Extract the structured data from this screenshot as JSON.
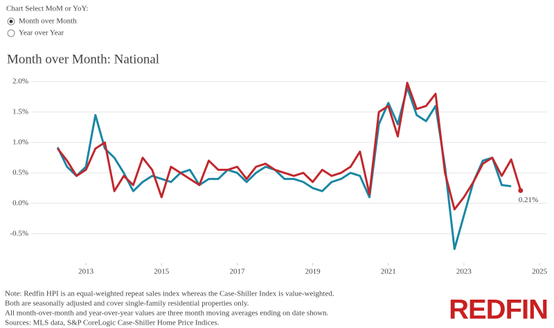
{
  "control": {
    "label": "Chart Select MoM or YoY:",
    "options": [
      "Month over Month",
      "Year over Year"
    ],
    "selected": 0
  },
  "chart_data": {
    "type": "line",
    "title": "Month over Month:  National",
    "x": [
      2012.25,
      2012.5,
      2012.75,
      2013.0,
      2013.25,
      2013.5,
      2013.75,
      2014.0,
      2014.25,
      2014.5,
      2014.75,
      2015.0,
      2015.25,
      2015.5,
      2015.75,
      2016.0,
      2016.25,
      2016.5,
      2016.75,
      2017.0,
      2017.25,
      2017.5,
      2017.75,
      2018.0,
      2018.25,
      2018.5,
      2018.75,
      2019.0,
      2019.25,
      2019.5,
      2019.75,
      2020.0,
      2020.25,
      2020.5,
      2020.75,
      2021.0,
      2021.25,
      2021.5,
      2021.75,
      2022.0,
      2022.25,
      2022.5,
      2022.75,
      2023.0,
      2023.25,
      2023.5,
      2023.75,
      2024.0,
      2024.25,
      2024.5
    ],
    "series": [
      {
        "color": "#c1272d",
        "values": [
          0.9,
          0.7,
          0.45,
          0.55,
          0.9,
          1.0,
          0.2,
          0.45,
          0.3,
          0.75,
          0.55,
          0.1,
          0.6,
          0.5,
          0.4,
          0.3,
          0.7,
          0.55,
          0.55,
          0.6,
          0.4,
          0.6,
          0.65,
          0.55,
          0.5,
          0.45,
          0.5,
          0.35,
          0.55,
          0.45,
          0.5,
          0.6,
          0.85,
          0.15,
          1.5,
          1.6,
          1.1,
          1.98,
          1.55,
          1.6,
          1.8,
          0.5,
          -0.1,
          0.1,
          0.35,
          0.65,
          0.75,
          0.45,
          0.72,
          0.21
        ],
        "value_labels": [
          null,
          null,
          null,
          null,
          null,
          null,
          null,
          null,
          null,
          null,
          null,
          null,
          null,
          null,
          null,
          null,
          null,
          null,
          null,
          null,
          null,
          null,
          null,
          null,
          null,
          null,
          null,
          null,
          null,
          null,
          null,
          null,
          null,
          null,
          null,
          null,
          null,
          null,
          null,
          null,
          null,
          null,
          null,
          null,
          null,
          null,
          null,
          null,
          null,
          "0.21%"
        ]
      },
      {
        "color": "#1a87a4",
        "values": [
          0.92,
          0.6,
          0.45,
          0.6,
          1.45,
          0.9,
          0.75,
          0.5,
          0.2,
          0.35,
          0.45,
          0.4,
          0.35,
          0.5,
          0.55,
          0.3,
          0.4,
          0.4,
          0.55,
          0.5,
          0.35,
          0.5,
          0.6,
          0.55,
          0.4,
          0.4,
          0.35,
          0.25,
          0.2,
          0.35,
          0.4,
          0.5,
          0.45,
          0.1,
          1.3,
          1.65,
          1.3,
          1.9,
          1.45,
          1.35,
          1.6,
          0.6,
          -0.75,
          -0.2,
          0.35,
          0.7,
          0.75,
          0.3,
          0.28,
          null
        ]
      }
    ],
    "xlim": [
      2011.55,
      2025.2
    ],
    "xticks": [
      2013,
      2015,
      2017,
      2019,
      2021,
      2023,
      2025
    ],
    "ylim": [
      -0.98,
      2.09
    ],
    "yticks": [
      {
        "value": -0.5,
        "label": "-0.5%"
      },
      {
        "value": 0,
        "label": "0.0%"
      },
      {
        "value": 0.5,
        "label": "0.5%"
      },
      {
        "value": 1.0,
        "label": "1.0%"
      },
      {
        "value": 1.5,
        "label": "1.5%"
      },
      {
        "value": 2.0,
        "label": "2.0%"
      }
    ],
    "grid": true
  },
  "notes": [
    "Note: Redfin HPI is an equal-weighted repeat sales index whereas the Case-Shiller Index is value-weighted.",
    "Both are seasonally adjusted and cover single-family residential properties only.",
    "All month-over-month and year-over-year values are three month moving averages ending on date shown.",
    "Sources: MLS data, S&P CoreLogic Case-Shiller Home Price Indices."
  ],
  "logo": "REDFIN"
}
